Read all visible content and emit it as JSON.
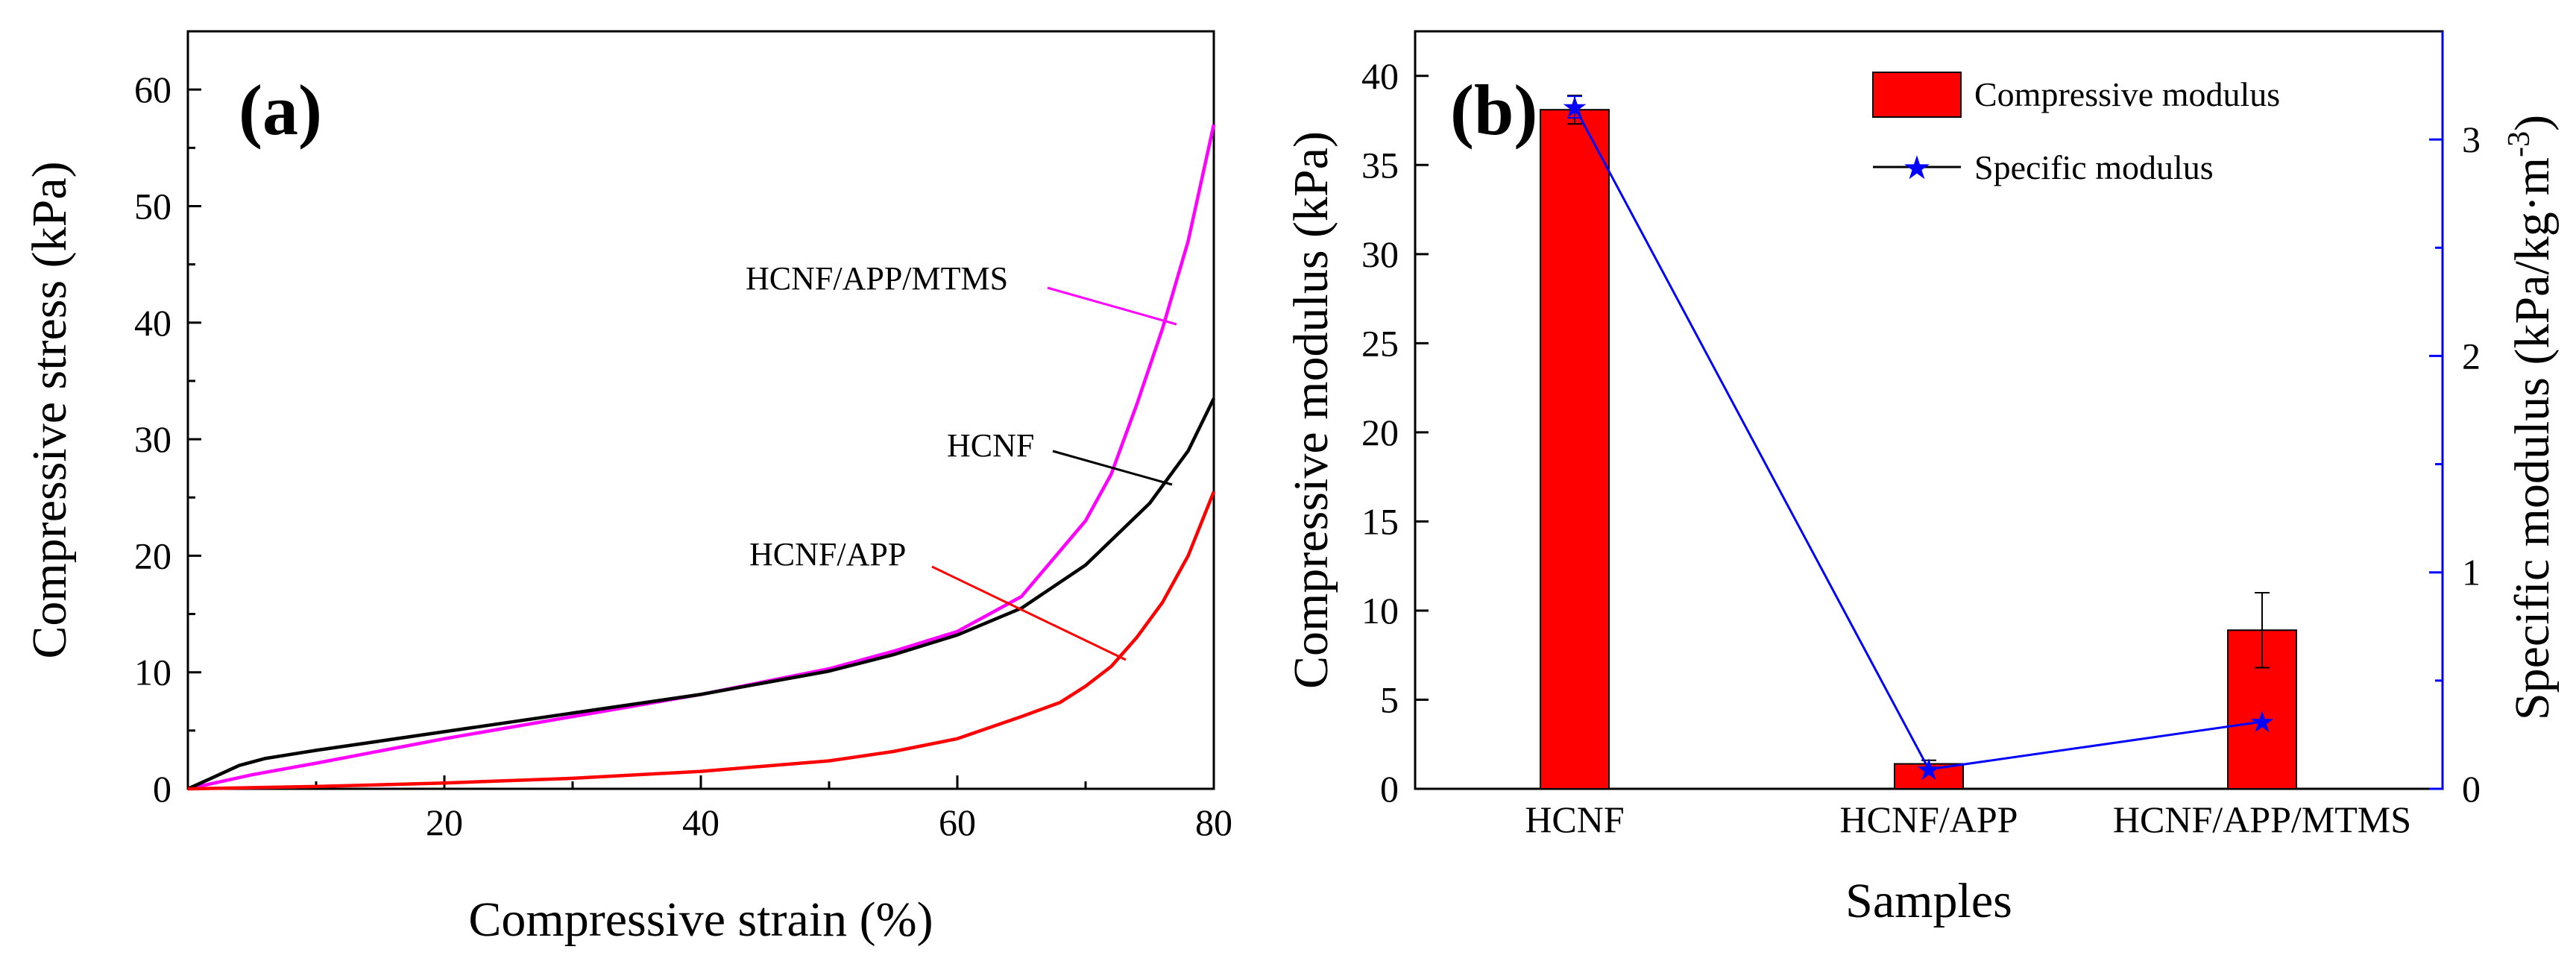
{
  "colors": {
    "hcnf": "#000000",
    "hcnf_app": "#ff0000",
    "hcnf_app_mtms": "#ff00ff",
    "bar_fill": "#ff0000",
    "specific": "#0000ff"
  },
  "chart_data": [
    {
      "type": "line",
      "panel_label": "(a)",
      "xlabel": "Compressive strain (%)",
      "ylabel": "Compressive stress (kPa)",
      "xlim": [
        0,
        80
      ],
      "ylim": [
        0,
        65
      ],
      "xticks": [
        20,
        40,
        60,
        80
      ],
      "yticks": [
        0,
        10,
        20,
        30,
        40,
        50,
        60
      ],
      "series": [
        {
          "name": "HCNF/APP/MTMS",
          "color": "#ff00ff",
          "x": [
            0,
            5,
            10,
            20,
            30,
            40,
            50,
            55,
            60,
            65,
            70,
            72,
            74,
            76,
            78,
            80
          ],
          "y": [
            0,
            1.2,
            2.2,
            4.3,
            6.2,
            8.1,
            10.3,
            11.8,
            13.5,
            16.5,
            23,
            27,
            33,
            39.5,
            47,
            57
          ]
        },
        {
          "name": "HCNF",
          "color": "#000000",
          "x": [
            0,
            2,
            4,
            6,
            10,
            20,
            30,
            40,
            50,
            55,
            60,
            65,
            70,
            75,
            78,
            80
          ],
          "y": [
            0,
            1.0,
            2.0,
            2.6,
            3.3,
            4.9,
            6.5,
            8.1,
            10.1,
            11.5,
            13.2,
            15.5,
            19.2,
            24.5,
            29,
            33.5
          ]
        },
        {
          "name": "HCNF/APP",
          "color": "#ff0000",
          "x": [
            0,
            10,
            20,
            30,
            40,
            50,
            55,
            60,
            65,
            68,
            70,
            72,
            74,
            76,
            78,
            80
          ],
          "y": [
            0,
            0.2,
            0.5,
            0.9,
            1.5,
            2.4,
            3.2,
            4.3,
            6.2,
            7.4,
            8.8,
            10.5,
            13,
            16,
            20,
            25.5
          ]
        }
      ],
      "annotations": [
        "HCNF/APP/MTMS",
        "HCNF",
        "HCNF/APP"
      ]
    },
    {
      "type": "bar",
      "panel_label": "(b)",
      "categories": [
        "HCNF",
        "HCNF/APP",
        "HCNF/APP/MTMS"
      ],
      "xlabel": "Samples",
      "ylabel": "Compressive modulus (kPa)",
      "ylabel_right": "Specific modulus (kPa/kg·m",
      "ylabel_right_sup": "-3",
      "ylabel_right_close": ")",
      "ylim": [
        0,
        42.5
      ],
      "ylim_right": [
        0,
        3.5
      ],
      "yticks": [
        0,
        5,
        10,
        15,
        20,
        25,
        30,
        35,
        40
      ],
      "yticks_right": [
        0,
        1,
        2,
        3
      ],
      "series": [
        {
          "name": "Compressive modulus",
          "values": [
            38.1,
            1.4,
            8.9
          ],
          "errors": [
            0.8,
            0.2,
            2.1
          ]
        },
        {
          "name": "Specific modulus",
          "axis": "right",
          "values": [
            3.15,
            0.09,
            0.31
          ],
          "errors": [
            0.05,
            0.0,
            0.0
          ]
        }
      ],
      "legend": [
        "Compressive modulus",
        "Specific modulus"
      ]
    }
  ]
}
